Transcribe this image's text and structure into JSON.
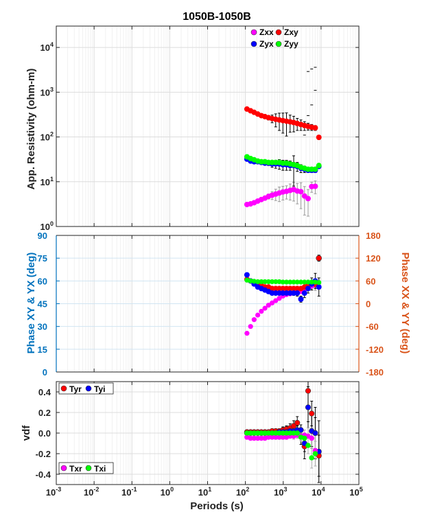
{
  "figure": {
    "title": "1050B-1050B",
    "xlabel": "Periods (s)",
    "x_tick_labels": [
      "10-3",
      "10-2",
      "10-1",
      "100",
      "101",
      "102",
      "103",
      "104",
      "105"
    ]
  },
  "chart_data": [
    {
      "type": "scatter",
      "panel": "resistivity",
      "xscale": "log",
      "yscale": "log",
      "xlim": [
        0.001,
        100000
      ],
      "ylim": [
        1,
        30000
      ],
      "ylabel": "App. Resistivity (ohm-m)",
      "grid": true,
      "legend_position": "top-right",
      "series": [
        {
          "name": "Zxx",
          "color": "#ff00ff",
          "x": [
            110,
            137,
            170,
            212,
            264,
            328,
            408,
            508,
            632,
            787,
            980,
            1220,
            1520,
            1890,
            2350,
            2930,
            3650,
            4540,
            5650,
            7030
          ],
          "y": [
            3.1,
            3.2,
            3.4,
            3.7,
            4.0,
            4.3,
            4.7,
            5.0,
            5.3,
            5.6,
            5.9,
            6.1,
            6.4,
            6.7,
            6.2,
            6.0,
            4.8,
            4.2,
            7.8,
            7.9
          ],
          "err": [
            0.15,
            0.15,
            0.2,
            0.2,
            0.3,
            0.4,
            0.6,
            1.0,
            1.5,
            2.0,
            2.0,
            2.0,
            2.5,
            3.0,
            3.0,
            3.5,
            3.0,
            2.5,
            2.0,
            2.5
          ]
        },
        {
          "name": "Zxy",
          "color": "#ff0000",
          "x": [
            110,
            137,
            170,
            212,
            264,
            328,
            408,
            508,
            632,
            787,
            980,
            1220,
            1520,
            1890,
            2350,
            2930,
            3650,
            4540,
            5650,
            7030,
            8750
          ],
          "y": [
            420,
            385,
            355,
            325,
            300,
            285,
            270,
            258,
            248,
            240,
            232,
            225,
            218,
            210,
            200,
            190,
            180,
            172,
            165,
            160,
            98
          ],
          "err": [
            5,
            5,
            6,
            8,
            10,
            15,
            30,
            50,
            80,
            100,
            110,
            120,
            90,
            80,
            60,
            50,
            40,
            30,
            25,
            20,
            10
          ]
        },
        {
          "name": "Zyx",
          "color": "#0000ff",
          "x": [
            110,
            137,
            170,
            212,
            264,
            328,
            408,
            508,
            632,
            787,
            980,
            1220,
            1520,
            1890,
            2350,
            2930,
            3650,
            4540,
            5650,
            7030,
            8750
          ],
          "y": [
            32,
            29,
            28,
            28,
            27,
            26,
            26,
            25,
            25,
            25,
            24,
            24,
            23,
            23,
            22,
            20,
            19,
            18,
            18,
            18,
            22
          ],
          "err": [
            1,
            1,
            1,
            1,
            1.5,
            2,
            3,
            4,
            5,
            6,
            6,
            6,
            5,
            15,
            5,
            4,
            3,
            2,
            2,
            2,
            2
          ]
        },
        {
          "name": "Zyy",
          "color": "#00ff00",
          "x": [
            110,
            137,
            170,
            212,
            264,
            328,
            408,
            508,
            632,
            787,
            980,
            1220,
            1520,
            1890,
            2350,
            2930,
            3650,
            4540,
            5650,
            7030,
            8750
          ],
          "y": [
            36,
            33,
            31,
            29,
            28,
            28,
            27,
            27,
            27,
            27,
            26,
            26,
            25,
            24,
            23,
            21,
            20,
            19,
            19,
            19,
            23
          ],
          "err": [
            1,
            1,
            1,
            1,
            1,
            1.5,
            2,
            3,
            3,
            4,
            4,
            4,
            4,
            3,
            3,
            3,
            2,
            2,
            2,
            2,
            2
          ]
        }
      ]
    },
    {
      "type": "scatter",
      "panel": "phase",
      "xscale": "log",
      "xlim": [
        0.001,
        100000
      ],
      "ylim_left": [
        0,
        90
      ],
      "ylim_right": [
        -180,
        180
      ],
      "ylabel_left": "Phase XY & YX (deg)",
      "ylabel_right": "Phase XX & YY (deg)",
      "left_ticks": [
        "0",
        "15",
        "30",
        "45",
        "60",
        "75",
        "90"
      ],
      "right_ticks": [
        "-180",
        "-120",
        "-60",
        "0",
        "60",
        "120",
        "180"
      ],
      "left_axis_color": "#0072bd",
      "right_axis_color": "#d95319",
      "grid": true,
      "series": [
        {
          "name": "Zxx",
          "color": "#ff00ff",
          "axis": "right",
          "x": [
            110,
            137,
            170,
            212,
            264,
            328,
            408,
            508,
            632,
            787,
            980,
            1220,
            1520,
            1890,
            2350,
            2930,
            3650,
            4540,
            5650,
            7030
          ],
          "y": [
            -78,
            -60,
            -42,
            -30,
            -20,
            -12,
            -4,
            2,
            8,
            14,
            20,
            24,
            26,
            28,
            30,
            32,
            36,
            44,
            46,
            50
          ],
          "err": [
            2,
            2,
            2,
            2,
            2,
            2,
            2,
            2,
            2,
            2,
            3,
            3,
            3,
            3,
            4,
            5,
            6,
            8,
            10,
            15
          ]
        },
        {
          "name": "Zxy",
          "color": "#ff0000",
          "axis": "left",
          "x": [
            110,
            137,
            170,
            212,
            264,
            328,
            408,
            508,
            632,
            787,
            980,
            1220,
            1520,
            1890,
            2350,
            2930,
            3650,
            4540,
            5650,
            7030,
            8750
          ],
          "y": [
            61,
            60,
            59,
            58,
            57,
            56,
            56,
            55,
            55,
            55,
            55,
            55,
            55,
            55,
            55,
            55,
            56,
            57,
            58,
            58,
            75
          ],
          "err": [
            0.5,
            0.5,
            0.5,
            0.5,
            0.5,
            0.5,
            0.5,
            0.5,
            0.5,
            0.5,
            0.5,
            0.5,
            0.5,
            0.5,
            0.5,
            0.5,
            1,
            1.5,
            2,
            2,
            2
          ]
        },
        {
          "name": "Zyx",
          "color": "#0000ff",
          "axis": "left",
          "x": [
            110,
            137,
            170,
            212,
            264,
            328,
            408,
            508,
            632,
            787,
            980,
            1220,
            1520,
            1890,
            2350,
            2930,
            3650,
            4540,
            5650,
            7030,
            8750
          ],
          "y": [
            64,
            60,
            58,
            56,
            55,
            54,
            53,
            52,
            52,
            52,
            52,
            52,
            52,
            52,
            52,
            48,
            52,
            55,
            58,
            60,
            56
          ],
          "err": [
            0.5,
            0.5,
            0.5,
            0.5,
            0.5,
            0.5,
            0.5,
            0.5,
            0.5,
            0.5,
            0.5,
            0.5,
            1,
            1.5,
            2,
            2,
            3,
            3,
            4,
            5,
            6
          ]
        },
        {
          "name": "Zyy",
          "color": "#00ff00",
          "axis": "right",
          "x": [
            110,
            137,
            170,
            212,
            264,
            328,
            408,
            508,
            632,
            787,
            980,
            1220,
            1520,
            1890,
            2350,
            2930,
            3650,
            4540,
            5650,
            7030,
            8750
          ],
          "y": [
            62,
            60,
            59,
            58,
            58,
            58,
            58,
            58,
            58,
            58,
            57,
            57,
            57,
            57,
            57,
            57,
            57,
            57,
            57,
            57,
            56
          ],
          "err": [
            1,
            1,
            1,
            1,
            1,
            1,
            1,
            1,
            1,
            1,
            1,
            1,
            2,
            2,
            2,
            2,
            2,
            2,
            3,
            3,
            4
          ]
        }
      ]
    },
    {
      "type": "scatter",
      "panel": "tipper",
      "xscale": "log",
      "xlim": [
        0.001,
        100000
      ],
      "ylim": [
        -0.5,
        0.5
      ],
      "ylabel": "vdf",
      "y_ticks": [
        "-0.4",
        "-0.2",
        "0.0",
        "0.2",
        "0.4"
      ],
      "grid": true,
      "legend_entries": [
        "Tyr",
        "Tyi",
        "Txr",
        "Txi"
      ],
      "series": [
        {
          "name": "Tyr",
          "color": "#ff0000",
          "x": [
            110,
            137,
            170,
            212,
            264,
            328,
            408,
            508,
            632,
            787,
            980,
            1220,
            1520,
            1890,
            2350,
            2930,
            3650,
            4540,
            5650,
            7030,
            8750
          ],
          "y": [
            0.01,
            0.01,
            0.01,
            0.01,
            0.01,
            0.01,
            0.01,
            0.02,
            0.02,
            0.02,
            0.03,
            0.04,
            0.05,
            0.07,
            0.1,
            -0.03,
            -0.13,
            0.41,
            0.19,
            0.0,
            -0.22
          ],
          "err": [
            0.01,
            0.01,
            0.01,
            0.01,
            0.01,
            0.01,
            0.01,
            0.01,
            0.02,
            0.02,
            0.03,
            0.03,
            0.04,
            0.05,
            0.06,
            0.08,
            0.12,
            0.3,
            0.12,
            0.15,
            0.2
          ]
        },
        {
          "name": "Tyi",
          "color": "#0000ff",
          "x": [
            110,
            137,
            170,
            212,
            264,
            328,
            408,
            508,
            632,
            787,
            980,
            1220,
            1520,
            1890,
            2350,
            2930,
            3650,
            4540,
            5650,
            7030,
            8750
          ],
          "y": [
            0.0,
            0.0,
            0.0,
            0.0,
            0.0,
            0.0,
            0.0,
            0.0,
            0.0,
            0.01,
            0.01,
            0.01,
            0.02,
            0.02,
            0.03,
            0.03,
            -0.1,
            0.25,
            0.02,
            0.0,
            -0.18
          ],
          "err": [
            0.01,
            0.01,
            0.01,
            0.01,
            0.01,
            0.01,
            0.01,
            0.01,
            0.02,
            0.02,
            0.02,
            0.02,
            0.03,
            0.03,
            0.04,
            0.05,
            0.08,
            0.2,
            0.15,
            0.25,
            0.3
          ]
        },
        {
          "name": "Txr",
          "color": "#ff00ff",
          "x": [
            110,
            137,
            170,
            212,
            264,
            328,
            408,
            508,
            632,
            787,
            980,
            1220,
            1520,
            1890,
            2350,
            2930,
            3650,
            4540,
            5650,
            7030
          ],
          "y": [
            -0.04,
            -0.05,
            -0.05,
            -0.05,
            -0.05,
            -0.05,
            -0.04,
            -0.04,
            -0.04,
            -0.04,
            -0.04,
            -0.04,
            -0.03,
            -0.03,
            -0.02,
            -0.03,
            -0.02,
            -0.03,
            -0.05,
            -0.17
          ],
          "err": [
            0.01,
            0.01,
            0.01,
            0.01,
            0.01,
            0.01,
            0.01,
            0.01,
            0.02,
            0.02,
            0.02,
            0.02,
            0.02,
            0.03,
            0.03,
            0.04,
            0.05,
            0.08,
            0.1,
            0.15
          ]
        },
        {
          "name": "Txi",
          "color": "#00ff00",
          "x": [
            110,
            137,
            170,
            212,
            264,
            328,
            408,
            508,
            632,
            787,
            980,
            1220,
            1520,
            1890,
            2350,
            2930,
            3650,
            4540,
            5650,
            7030
          ],
          "y": [
            0.0,
            0.0,
            0.0,
            0.0,
            0.0,
            0.0,
            0.0,
            0.0,
            0.0,
            0.0,
            0.0,
            0.0,
            0.0,
            0.0,
            0.0,
            -0.04,
            -0.05,
            -0.12,
            -0.24,
            -0.2
          ],
          "err": [
            0.01,
            0.01,
            0.01,
            0.01,
            0.01,
            0.01,
            0.01,
            0.01,
            0.01,
            0.01,
            0.02,
            0.02,
            0.02,
            0.03,
            0.03,
            0.04,
            0.05,
            0.08,
            0.1,
            0.12
          ]
        }
      ]
    }
  ]
}
